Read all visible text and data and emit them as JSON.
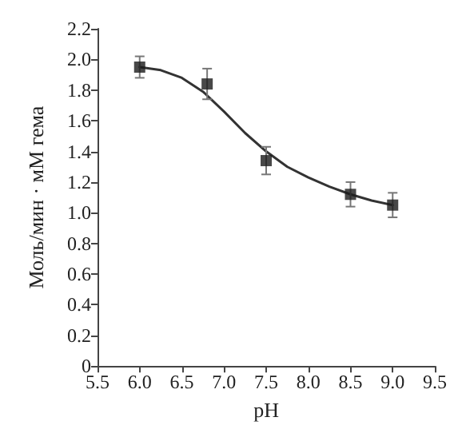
{
  "chart_data": {
    "type": "scatter",
    "xlabel": "pH",
    "ylabel": "Моль/мин · мМ гема",
    "xlim": [
      5.5,
      9.5
    ],
    "ylim": [
      0,
      2.2
    ],
    "xticks": [
      5.5,
      {
        "value": 6,
        "label": "6.0"
      },
      6.5,
      {
        "value": 7,
        "label": "7.0"
      },
      7.5,
      {
        "value": 8,
        "label": "8.0"
      },
      8.5,
      {
        "value": 9,
        "label": "9.0"
      },
      9.5
    ],
    "yticks": [
      0,
      0.2,
      0.4,
      0.6,
      0.8,
      {
        "value": 1,
        "label": "1.0"
      },
      1.2,
      1.4,
      1.6,
      1.8,
      {
        "value": 2,
        "label": "2.0"
      },
      2.2
    ],
    "grid": false,
    "series": [
      {
        "type": "line",
        "color": "#333333",
        "marker": "none",
        "line_style": "solid",
        "x": [
          6.0,
          6.25,
          6.5,
          6.75,
          7.0,
          7.25,
          7.5,
          7.75,
          8.0,
          8.25,
          8.5,
          8.75,
          9.0
        ],
        "values": [
          1.95,
          1.93,
          1.88,
          1.79,
          1.66,
          1.52,
          1.4,
          1.3,
          1.23,
          1.17,
          1.12,
          1.08,
          1.05
        ]
      },
      {
        "color": "#1a1a1a",
        "marker": "square",
        "x": [
          6.0,
          6.8,
          7.5,
          8.5,
          9.0
        ],
        "values": [
          1.95,
          1.84,
          1.34,
          1.12,
          1.05
        ],
        "errors": [
          0.07,
          0.1,
          0.09,
          0.08,
          0.08
        ]
      }
    ]
  }
}
